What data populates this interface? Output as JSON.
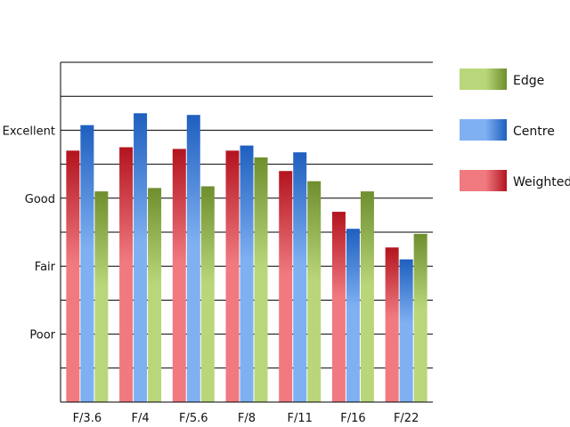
{
  "chart_data": {
    "type": "bar",
    "categories": [
      "F/3.6",
      "F/4",
      "F/5.6",
      "F/8",
      "F/11",
      "F/16",
      "F/22"
    ],
    "series": [
      {
        "name": "Weighted",
        "values": [
          7.4,
          7.5,
          7.45,
          7.4,
          6.8,
          5.6,
          4.55
        ],
        "color_light": "#f07a80",
        "color_dark": "#b3141f"
      },
      {
        "name": "Centre",
        "values": [
          8.15,
          8.5,
          8.45,
          7.55,
          7.35,
          5.1,
          4.2
        ],
        "color_light": "#7fb0f2",
        "color_dark": "#1f5fbf"
      },
      {
        "name": "Edge",
        "values": [
          6.2,
          6.3,
          6.35,
          7.2,
          6.5,
          6.2,
          4.95
        ],
        "color_light": "#b9d77a",
        "color_dark": "#6f8e2e"
      }
    ],
    "legend_order": [
      "Edge",
      "Centre",
      "Weighted"
    ],
    "legend_position": "right",
    "y_ticks": [
      {
        "label": "Poor",
        "value": 2
      },
      {
        "label": "Fair",
        "value": 4
      },
      {
        "label": "Good",
        "value": 6
      },
      {
        "label": "Excellent",
        "value": 8
      }
    ],
    "ylim": [
      0,
      10
    ],
    "grid": true,
    "title": "",
    "xlabel": "",
    "ylabel": ""
  }
}
